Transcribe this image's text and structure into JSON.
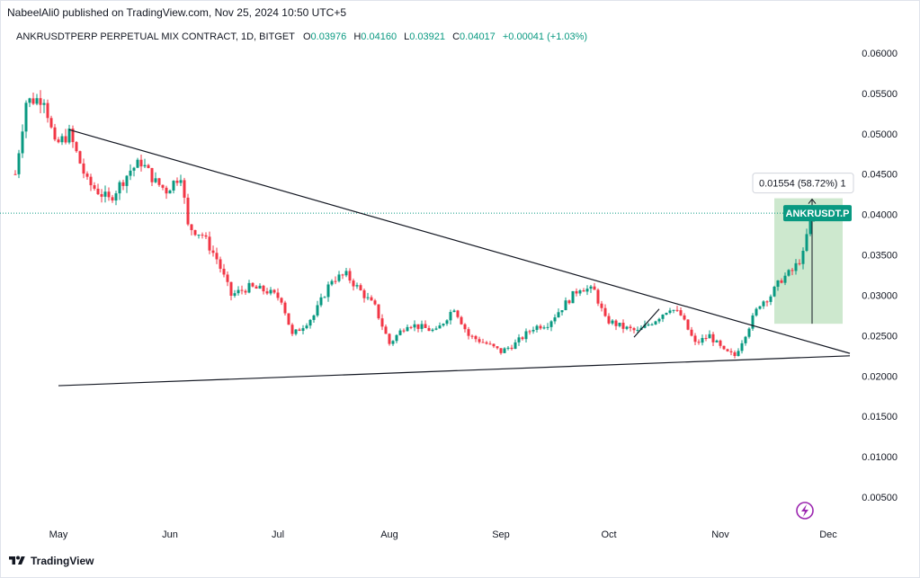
{
  "publisher": {
    "text": "NabeelAli0 published on TradingView.com, Nov 25, 2024 10:50 UTC+5"
  },
  "legend": {
    "symbol": "ANKRUSDTPERP PERPETUAL MIX CONTRACT, 1D, BITGET",
    "o_label": "O",
    "o_value": "0.03976",
    "h_label": "H",
    "h_value": "0.04160",
    "l_label": "L",
    "l_value": "0.03921",
    "c_label": "C",
    "c_value": "0.04017",
    "change": "+0.00041 (+1.03%)"
  },
  "footer": {
    "brand": "TradingView"
  },
  "colors": {
    "up": "#089981",
    "down": "#f23645",
    "range_fill": "#c8e6c9",
    "price_tag": "#089981"
  },
  "chart_data": {
    "type": "candlestick",
    "symbol_tag": "ANKRUSDT.P",
    "last_price": 0.04017,
    "ylim": [
      0.0,
      0.0625
    ],
    "y_ticks": [
      "0.00500",
      "0.01000",
      "0.01500",
      "0.02000",
      "0.02500",
      "0.03000",
      "0.03500",
      "0.04000",
      "0.04500",
      "0.05000",
      "0.05500",
      "0.06000"
    ],
    "x_ticks": [
      {
        "label": "May",
        "day": 0
      },
      {
        "label": "Jun",
        "day": 31
      },
      {
        "label": "Jul",
        "day": 61
      },
      {
        "label": "Aug",
        "day": 92
      },
      {
        "label": "Sep",
        "day": 123
      },
      {
        "label": "Oct",
        "day": 153
      },
      {
        "label": "Nov",
        "day": 184
      },
      {
        "label": "Dec",
        "day": 214
      }
    ],
    "x_domain_days": [
      -13,
      220
    ],
    "start_date": "2024-04-18",
    "anchors": [
      {
        "day": -12,
        "price": 0.045
      },
      {
        "day": -9,
        "price": 0.054
      },
      {
        "day": -4,
        "price": 0.0545
      },
      {
        "day": -1,
        "price": 0.0485
      },
      {
        "day": 3,
        "price": 0.05
      },
      {
        "day": 8,
        "price": 0.044
      },
      {
        "day": 14,
        "price": 0.0418
      },
      {
        "day": 20,
        "price": 0.0455
      },
      {
        "day": 23,
        "price": 0.0465
      },
      {
        "day": 27,
        "price": 0.044
      },
      {
        "day": 30,
        "price": 0.043
      },
      {
        "day": 34,
        "price": 0.045
      },
      {
        "day": 36,
        "price": 0.0385
      },
      {
        "day": 40,
        "price": 0.0375
      },
      {
        "day": 44,
        "price": 0.0345
      },
      {
        "day": 48,
        "price": 0.03
      },
      {
        "day": 53,
        "price": 0.031
      },
      {
        "day": 58,
        "price": 0.0305
      },
      {
        "day": 62,
        "price": 0.0295
      },
      {
        "day": 65,
        "price": 0.025
      },
      {
        "day": 71,
        "price": 0.0275
      },
      {
        "day": 76,
        "price": 0.032
      },
      {
        "day": 80,
        "price": 0.0325
      },
      {
        "day": 84,
        "price": 0.0305
      },
      {
        "day": 88,
        "price": 0.0285
      },
      {
        "day": 92,
        "price": 0.024
      },
      {
        "day": 97,
        "price": 0.0265
      },
      {
        "day": 101,
        "price": 0.026
      },
      {
        "day": 105,
        "price": 0.0255
      },
      {
        "day": 110,
        "price": 0.0285
      },
      {
        "day": 114,
        "price": 0.025
      },
      {
        "day": 119,
        "price": 0.024
      },
      {
        "day": 123,
        "price": 0.023
      },
      {
        "day": 127,
        "price": 0.024
      },
      {
        "day": 132,
        "price": 0.026
      },
      {
        "day": 136,
        "price": 0.0265
      },
      {
        "day": 140,
        "price": 0.0285
      },
      {
        "day": 145,
        "price": 0.031
      },
      {
        "day": 149,
        "price": 0.0305
      },
      {
        "day": 152,
        "price": 0.027
      },
      {
        "day": 157,
        "price": 0.026
      },
      {
        "day": 161,
        "price": 0.0255
      },
      {
        "day": 166,
        "price": 0.027
      },
      {
        "day": 170,
        "price": 0.0285
      },
      {
        "day": 173,
        "price": 0.0275
      },
      {
        "day": 177,
        "price": 0.024
      },
      {
        "day": 181,
        "price": 0.025
      },
      {
        "day": 185,
        "price": 0.023
      },
      {
        "day": 188,
        "price": 0.0225
      },
      {
        "day": 192,
        "price": 0.0262
      },
      {
        "day": 195,
        "price": 0.029
      },
      {
        "day": 198,
        "price": 0.03
      },
      {
        "day": 201,
        "price": 0.032
      },
      {
        "day": 204,
        "price": 0.033
      },
      {
        "day": 207,
        "price": 0.035
      },
      {
        "day": 209,
        "price": 0.0397
      },
      {
        "day": 210,
        "price": 0.0402
      }
    ],
    "trendlines": [
      {
        "name": "descending-resistance",
        "from": {
          "day": 3,
          "price": 0.0505
        },
        "to": {
          "day": 220,
          "price": 0.0228
        }
      },
      {
        "name": "ascending-support",
        "from": {
          "day": 0,
          "price": 0.0188
        },
        "to": {
          "day": 220,
          "price": 0.0225
        }
      },
      {
        "name": "small-channel",
        "from": {
          "day": 160,
          "price": 0.0248
        },
        "to": {
          "day": 167,
          "price": 0.0283
        }
      }
    ],
    "measure": {
      "label": "0.01554 (58.72%) 1",
      "from_price": 0.02647,
      "to_price": 0.04201,
      "start_day": 199,
      "end_day": 220
    }
  }
}
